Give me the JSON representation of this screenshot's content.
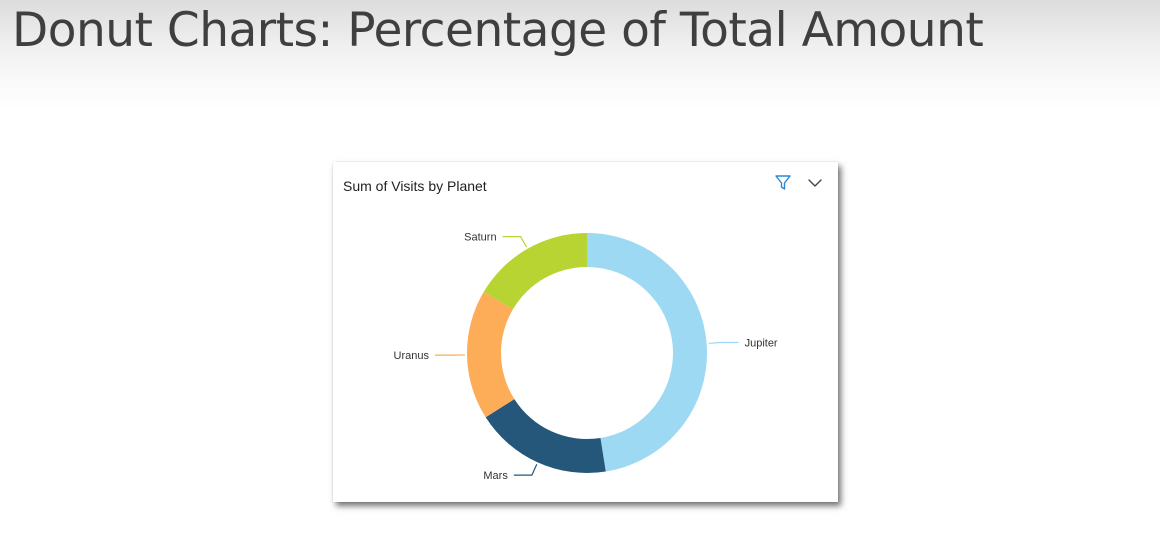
{
  "slide": {
    "title": "Donut Charts: Percentage of Total Amount"
  },
  "visual": {
    "title": "Sum of Visits by Planet",
    "icons": {
      "filter": "filter-icon",
      "more_options": "chevron-down-icon"
    },
    "filter_icon_color": "#2b88d8"
  },
  "chart_data": {
    "type": "pie",
    "variant": "donut",
    "title": "Sum of Visits by Planet",
    "slices": [
      {
        "label": "Jupiter",
        "value": 47.5,
        "color": "#9dd9f3"
      },
      {
        "label": "Mars",
        "value": 18.5,
        "color": "#24577a"
      },
      {
        "label": "Uranus",
        "value": 17.5,
        "color": "#fdac58"
      },
      {
        "label": "Saturn",
        "value": 16.5,
        "color": "#b8d433"
      }
    ],
    "legend": "none",
    "labels": "outside with leader lines"
  }
}
